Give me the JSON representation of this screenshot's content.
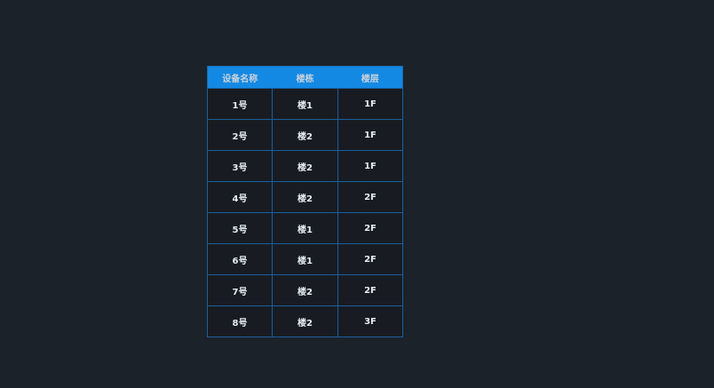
{
  "table": {
    "columns": [
      "设备名称",
      "楼栋",
      "楼层"
    ],
    "rows": [
      [
        "1号",
        "楼1",
        "1F"
      ],
      [
        "2号",
        "楼2",
        "1F"
      ],
      [
        "3号",
        "楼2",
        "1F"
      ],
      [
        "4号",
        "楼2",
        "2F"
      ],
      [
        "5号",
        "楼1",
        "2F"
      ],
      [
        "6号",
        "楼1",
        "2F"
      ],
      [
        "7号",
        "楼2",
        "2F"
      ],
      [
        "8号",
        "楼2",
        "3F"
      ]
    ]
  },
  "colors": {
    "background": "#1c222a",
    "header": "#1489e3",
    "border": "#1a5e9e",
    "cell": "#181c22"
  }
}
